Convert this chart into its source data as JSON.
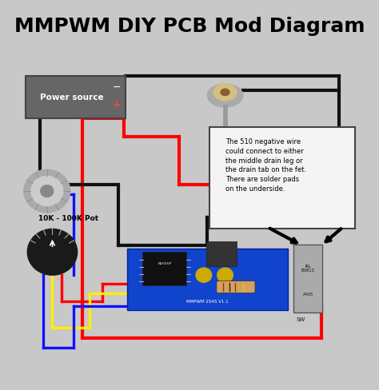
{
  "title": "MMPWM DIY PCB Mod Diagram",
  "title_fontsize": 18,
  "title_color": "#000000",
  "title_fontweight": "bold",
  "bg_color": "#c8c8c8",
  "diagram_bg": "#ffffff",
  "annotation_text": "The 510 negative wire\ncould connect to either\nthe middle drain leg or\nthe drain tab on the fet.\nThere are solder pads\non the underside.",
  "label_10k": "10K - 100K Pot",
  "label_power": "Power source",
  "wire_red": "#ff0000",
  "wire_black": "#111111",
  "wire_blue": "#1111ff",
  "wire_yellow": "#ffee00"
}
